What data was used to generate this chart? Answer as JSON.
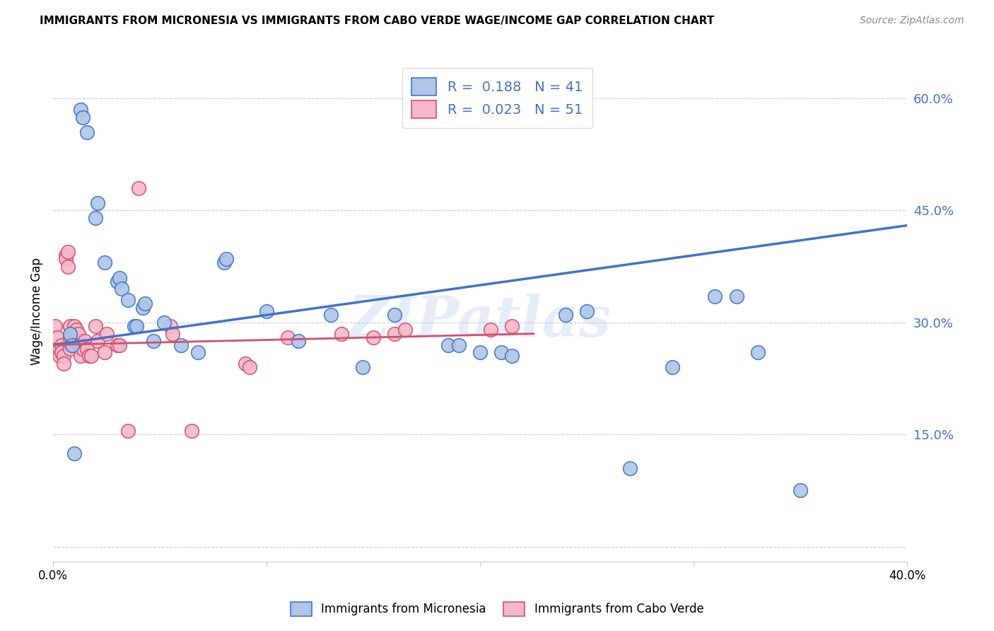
{
  "title": "IMMIGRANTS FROM MICRONESIA VS IMMIGRANTS FROM CABO VERDE WAGE/INCOME GAP CORRELATION CHART",
  "source": "Source: ZipAtlas.com",
  "ylabel": "Wage/Income Gap",
  "xlim": [
    0.0,
    0.4
  ],
  "ylim": [
    -0.02,
    0.65
  ],
  "yticks": [
    0.0,
    0.15,
    0.3,
    0.45,
    0.6
  ],
  "ytick_labels": [
    "",
    "15.0%",
    "30.0%",
    "45.0%",
    "60.0%"
  ],
  "xticks": [
    0.0,
    0.1,
    0.2,
    0.3,
    0.4
  ],
  "xtick_labels": [
    "0.0%",
    "",
    "",
    "",
    "40.0%"
  ],
  "blue_R": "0.188",
  "blue_N": "41",
  "pink_R": "0.023",
  "pink_N": "51",
  "blue_color": "#aec6e8",
  "pink_color": "#f4b8c8",
  "blue_line_color": "#4472c4",
  "pink_line_color": "#d05070",
  "watermark": "ZIPatlas",
  "legend_label_blue": "Immigrants from Micronesia",
  "legend_label_pink": "Immigrants from Cabo Verde",
  "blue_scatter_x": [
    0.008,
    0.009,
    0.01,
    0.013,
    0.014,
    0.016,
    0.02,
    0.021,
    0.024,
    0.03,
    0.031,
    0.032,
    0.035,
    0.038,
    0.039,
    0.042,
    0.043,
    0.047,
    0.052,
    0.06,
    0.068,
    0.08,
    0.081,
    0.1,
    0.115,
    0.13,
    0.145,
    0.16,
    0.185,
    0.19,
    0.2,
    0.21,
    0.215,
    0.24,
    0.25,
    0.27,
    0.29,
    0.31,
    0.32,
    0.33,
    0.35
  ],
  "blue_scatter_y": [
    0.285,
    0.27,
    0.125,
    0.585,
    0.575,
    0.555,
    0.44,
    0.46,
    0.38,
    0.355,
    0.36,
    0.345,
    0.33,
    0.295,
    0.295,
    0.32,
    0.325,
    0.275,
    0.3,
    0.27,
    0.26,
    0.38,
    0.385,
    0.315,
    0.275,
    0.31,
    0.24,
    0.31,
    0.27,
    0.27,
    0.26,
    0.26,
    0.255,
    0.31,
    0.315,
    0.105,
    0.24,
    0.335,
    0.335,
    0.26,
    0.075
  ],
  "pink_scatter_x": [
    0.001,
    0.002,
    0.003,
    0.003,
    0.004,
    0.004,
    0.005,
    0.005,
    0.006,
    0.006,
    0.007,
    0.007,
    0.008,
    0.008,
    0.008,
    0.009,
    0.009,
    0.01,
    0.01,
    0.01,
    0.011,
    0.011,
    0.012,
    0.012,
    0.013,
    0.013,
    0.014,
    0.015,
    0.016,
    0.017,
    0.018,
    0.02,
    0.021,
    0.024,
    0.025,
    0.03,
    0.031,
    0.035,
    0.04,
    0.055,
    0.056,
    0.065,
    0.09,
    0.092,
    0.11,
    0.135,
    0.15,
    0.16,
    0.165,
    0.205,
    0.215
  ],
  "pink_scatter_y": [
    0.295,
    0.28,
    0.265,
    0.255,
    0.27,
    0.26,
    0.255,
    0.245,
    0.39,
    0.385,
    0.395,
    0.375,
    0.295,
    0.28,
    0.265,
    0.28,
    0.27,
    0.295,
    0.285,
    0.275,
    0.29,
    0.275,
    0.285,
    0.27,
    0.265,
    0.255,
    0.265,
    0.275,
    0.265,
    0.255,
    0.255,
    0.295,
    0.275,
    0.26,
    0.285,
    0.27,
    0.27,
    0.155,
    0.48,
    0.295,
    0.285,
    0.155,
    0.245,
    0.24,
    0.28,
    0.285,
    0.28,
    0.285,
    0.29,
    0.29,
    0.295
  ],
  "blue_line_x": [
    0.0,
    0.4
  ],
  "blue_line_y": [
    0.27,
    0.43
  ],
  "pink_line_x": [
    0.0,
    0.225
  ],
  "pink_line_y": [
    0.27,
    0.285
  ]
}
